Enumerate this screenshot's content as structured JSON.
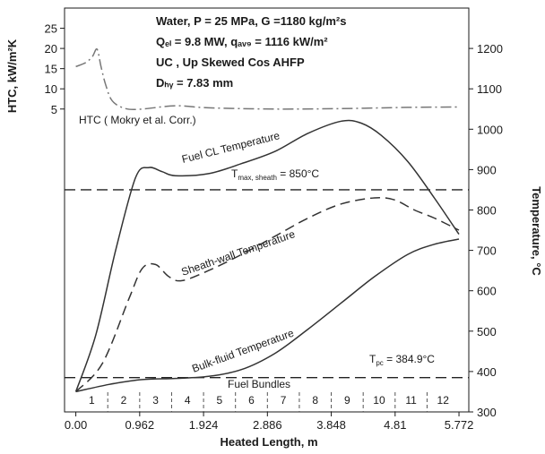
{
  "chart_data": {
    "type": "line",
    "info_lines": [
      "Water, P = 25 MPa, G =1180 kg/m²s",
      "Qₑₗ = 9.8 MW, qₐᵥ₉ = 1116 kW/m²",
      "UC , Up Skewed Cos AHFP",
      "Dₕᵧ = 7.83 mm"
    ],
    "xlabel": "Heated Length, m",
    "ylabel_left": "HTC, kW/m²K",
    "ylabel_right": "Temperature, °C",
    "x_ticks": [
      "0.00",
      "0.962",
      "1.924",
      "2.886",
      "3.848",
      "4.81",
      "5.772"
    ],
    "x_tick_values": [
      0,
      0.962,
      1.924,
      2.886,
      3.848,
      4.81,
      5.772
    ],
    "xlim": [
      -0.17,
      5.92
    ],
    "right_ticks": [
      300,
      400,
      500,
      600,
      700,
      800,
      900,
      1000,
      1100,
      1200
    ],
    "ylim_right": [
      300,
      1300
    ],
    "left_ticks": [
      5,
      10,
      15,
      20,
      25
    ],
    "left_axis_map": [
      {
        "htc": 5,
        "temp": 1050
      },
      {
        "htc": 25,
        "temp": 1250
      }
    ],
    "bundle_labels": [
      "1",
      "2",
      "3",
      "4",
      "5",
      "6",
      "7",
      "8",
      "9",
      "10",
      "11",
      "12"
    ],
    "bundle_caption": "Fuel Bundles",
    "curve_labels": {
      "htc": "HTC ( Mokry et al. Corr.)",
      "fuel_cl": "Fuel CL Temperature",
      "sheath": "Sheath-wall Temperature",
      "bulk": "Bulk-fluid Temperature"
    },
    "reference_lines": [
      {
        "name": "T_max,sheath",
        "label_main": "T",
        "label_sub": "max, sheath",
        "label_tail": " = 850°C",
        "value": 850
      },
      {
        "name": "T_pc",
        "label_main": "T",
        "label_sub": "pc",
        "label_tail": " = 384.9°C",
        "value": 385
      }
    ],
    "series": [
      {
        "name": "HTC ( Mokry et al. Corr.)",
        "axis": "left",
        "style": "dash-dot",
        "x": [
          0,
          0.15,
          0.25,
          0.32,
          0.38,
          0.45,
          0.55,
          0.75,
          1.0,
          1.5,
          2.0,
          3.0,
          4.0,
          5.0,
          5.772
        ],
        "y": [
          15.5,
          16.5,
          18.0,
          19.8,
          15.5,
          11.0,
          7.0,
          5.1,
          5.0,
          5.8,
          5.3,
          5.0,
          5.1,
          5.4,
          5.5
        ]
      },
      {
        "name": "Fuel CL Temperature",
        "axis": "right",
        "style": "solid",
        "x": [
          0,
          0.3,
          0.6,
          0.9,
          1.1,
          1.3,
          1.5,
          2.0,
          2.5,
          3.0,
          3.5,
          4.0,
          4.3,
          4.6,
          5.0,
          5.4,
          5.772
        ],
        "y": [
          350,
          490,
          700,
          880,
          905,
          895,
          885,
          890,
          915,
          945,
          990,
          1020,
          1015,
          985,
          920,
          830,
          740
        ]
      },
      {
        "name": "Sheath-wall Temperature",
        "axis": "right",
        "style": "dashed",
        "x": [
          0,
          0.4,
          0.8,
          1.0,
          1.2,
          1.4,
          1.6,
          2.0,
          2.5,
          3.0,
          3.5,
          4.0,
          4.5,
          4.8,
          5.1,
          5.4,
          5.772
        ],
        "y": [
          350,
          420,
          580,
          655,
          665,
          635,
          625,
          650,
          690,
          735,
          780,
          815,
          830,
          825,
          800,
          780,
          750
        ]
      },
      {
        "name": "Bulk-fluid Temperature",
        "axis": "right",
        "style": "solid",
        "x": [
          0,
          0.5,
          1.0,
          1.5,
          2.0,
          2.5,
          3.0,
          3.5,
          4.0,
          4.5,
          5.0,
          5.4,
          5.772
        ],
        "y": [
          350,
          368,
          380,
          383,
          388,
          405,
          445,
          505,
          570,
          635,
          690,
          715,
          728
        ]
      }
    ]
  }
}
